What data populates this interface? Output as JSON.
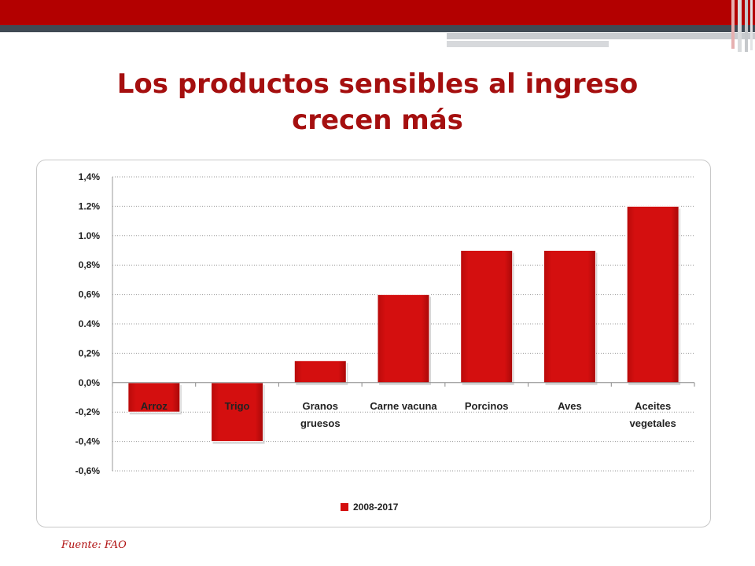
{
  "slide": {
    "title_lines": [
      "Los productos sensibles al ingreso",
      "crecen más"
    ],
    "source": "Fuente: FAO"
  },
  "colors": {
    "title": "#a50f0f",
    "bar": "#d40f0f",
    "header_red": "#b30000",
    "header_gray": "#404a54"
  },
  "chart_data": {
    "type": "bar",
    "categories": [
      "Arroz",
      "Trigo",
      "Granos gruesos",
      "Carne vacuna",
      "Porcinos",
      "Aves",
      "Aceites vegetales"
    ],
    "category_label_lines": [
      [
        "Arroz"
      ],
      [
        "Trigo"
      ],
      [
        "Granos",
        "gruesos"
      ],
      [
        "Carne vacuna"
      ],
      [
        "Porcinos"
      ],
      [
        "Aves"
      ],
      [
        "Aceites",
        "vegetales"
      ]
    ],
    "series": [
      {
        "name": "2008-2017",
        "values": [
          -0.2,
          -0.4,
          0.15,
          0.6,
          0.9,
          0.9,
          1.2
        ]
      }
    ],
    "yticks": [
      1.4,
      1.2,
      1.0,
      0.8,
      0.6,
      0.4,
      0.2,
      0.0,
      -0.2,
      -0.4,
      -0.6
    ],
    "ytick_labels": [
      "1,4%",
      "1.2%",
      "1.0%",
      "0,8%",
      "0,6%",
      "0.4%",
      "0,2%",
      "0,0%",
      "-0,2%",
      "-0,4%",
      "-0,6%"
    ],
    "ylim": [
      -0.6,
      1.4
    ],
    "grid": true,
    "legend_position": "bottom",
    "title": "",
    "xlabel": "",
    "ylabel": ""
  }
}
